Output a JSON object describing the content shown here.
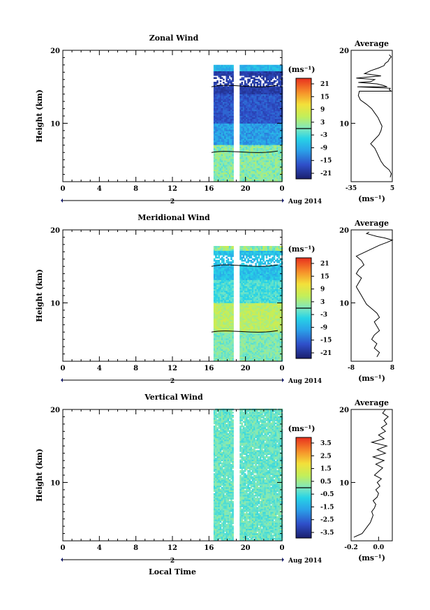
{
  "chart_data": [
    {
      "type": "heatmap",
      "title": "Zonal Wind",
      "ylabel": "Height (km)",
      "x_ticks": [
        "0",
        "4",
        "8",
        "12",
        "16",
        "20",
        "0"
      ],
      "y_ticks": [
        "10",
        "20"
      ],
      "xlim": [
        0,
        24
      ],
      "ylim": [
        2,
        20
      ],
      "date_day": "2",
      "date_label": "Aug 2014",
      "colorbar": {
        "unit": "(ms⁻¹)",
        "ticks": [
          "21",
          "15",
          "9",
          "3",
          "-3",
          "-9",
          "-15",
          "-21"
        ],
        "range": [
          -24,
          24
        ]
      },
      "average": {
        "title": "Average",
        "x_ticks": [
          "-35",
          "5"
        ],
        "xlim": [
          -35,
          5
        ],
        "unit": "(ms⁻¹)",
        "x": [
          3,
          4,
          2,
          -3,
          -6,
          -8,
          -10,
          -12,
          -16,
          -12,
          -8,
          -6,
          -5,
          -7,
          -9,
          -12,
          -15,
          -20,
          -26,
          -28,
          -27,
          -29,
          -28,
          -30,
          -22,
          -16,
          -8,
          -3,
          -2,
          1,
          2,
          4,
          2,
          -6,
          -12,
          -16,
          -10,
          -4,
          0,
          3,
          2,
          4
        ],
        "y": [
          2.6,
          3.1,
          3.6,
          4.2,
          4.8,
          5.4,
          6.0,
          6.6,
          7.2,
          7.8,
          8.4,
          9.0,
          9.6,
          10.2,
          10.8,
          11.4,
          12.0,
          12.6,
          13.2,
          13.8,
          14.4,
          15.0,
          15.6,
          16.2,
          16.8,
          17.2,
          17.6,
          17.9,
          18.2,
          18.5,
          18.8,
          19.1,
          19.4,
          16.5,
          16.0,
          15.7,
          15.4,
          15.2,
          15.0,
          14.8,
          14.6,
          14.4
        ]
      }
    },
    {
      "type": "heatmap",
      "title": "Meridional Wind",
      "ylabel": "Height (km)",
      "x_ticks": [
        "0",
        "4",
        "8",
        "12",
        "16",
        "20",
        "0"
      ],
      "y_ticks": [
        "10",
        "20"
      ],
      "xlim": [
        0,
        24
      ],
      "ylim": [
        2,
        20
      ],
      "date_day": "2",
      "date_label": "Aug 2014",
      "colorbar": {
        "unit": "(ms⁻¹)",
        "ticks": [
          "21",
          "15",
          "9",
          "3",
          "-3",
          "-9",
          "-15",
          "-21"
        ],
        "range": [
          -24,
          24
        ]
      },
      "average": {
        "title": "Average",
        "x_ticks": [
          "-8",
          "8"
        ],
        "xlim": [
          -8,
          8
        ],
        "unit": "(ms⁻¹)",
        "x": [
          2,
          3,
          1,
          2,
          0,
          1,
          3,
          2,
          1,
          3,
          2,
          0,
          -2,
          -3,
          -4,
          -5,
          -6,
          -5,
          -4,
          -6,
          -5,
          -3,
          -4,
          -6,
          -3,
          0,
          3,
          6,
          8,
          5,
          2,
          0,
          -2,
          -1
        ],
        "y": [
          2.6,
          3.2,
          3.8,
          4.4,
          5.0,
          5.6,
          6.2,
          6.8,
          7.4,
          8.0,
          8.6,
          9.2,
          9.8,
          10.4,
          11.0,
          11.6,
          12.2,
          12.8,
          13.4,
          14.0,
          14.6,
          15.2,
          15.8,
          16.4,
          16.9,
          17.4,
          17.9,
          18.3,
          18.6,
          18.9,
          19.1,
          19.3,
          19.5,
          19.7
        ]
      }
    },
    {
      "type": "heatmap",
      "title": "Vertical Wind",
      "ylabel": "Height (km)",
      "xlabel": "Local Time",
      "x_ticks": [
        "0",
        "4",
        "8",
        "12",
        "16",
        "20",
        "0"
      ],
      "y_ticks": [
        "10",
        "20"
      ],
      "xlim": [
        0,
        24
      ],
      "ylim": [
        2,
        20
      ],
      "date_day": "2",
      "date_label": "Aug 2014",
      "colorbar": {
        "unit": "(ms⁻¹)",
        "ticks": [
          "3.5",
          "2.5",
          "1.5",
          "0.5",
          "-0.5",
          "-1.5",
          "-2.5",
          "-3.5"
        ],
        "range": [
          -4,
          4
        ]
      },
      "average": {
        "title": "Average",
        "x_ticks": [
          "-0.2",
          "0.0"
        ],
        "xlim": [
          -0.2,
          0.1
        ],
        "unit": "(ms⁻¹)",
        "x": [
          -0.18,
          -0.12,
          -0.1,
          -0.08,
          -0.06,
          -0.05,
          -0.04,
          -0.05,
          -0.03,
          -0.02,
          -0.04,
          -0.01,
          0.0,
          -0.02,
          0.01,
          -0.01,
          0.02,
          -0.03,
          0.0,
          0.03,
          -0.02,
          0.04,
          -0.04,
          0.05,
          -0.01,
          0.06,
          -0.05,
          0.04,
          0.0,
          0.05,
          0.02,
          0.06,
          0.04,
          0.07,
          0.03,
          0.05
        ],
        "y": [
          2.5,
          3.0,
          3.5,
          4.0,
          4.5,
          5.0,
          5.5,
          6.0,
          6.5,
          7.0,
          7.5,
          8.0,
          8.5,
          9.0,
          9.5,
          10.0,
          10.5,
          11.0,
          11.5,
          12.0,
          12.5,
          13.0,
          13.5,
          14.0,
          14.5,
          15.0,
          15.5,
          16.0,
          16.5,
          17.0,
          17.5,
          18.0,
          18.5,
          19.0,
          19.5,
          20.0
        ]
      }
    }
  ]
}
